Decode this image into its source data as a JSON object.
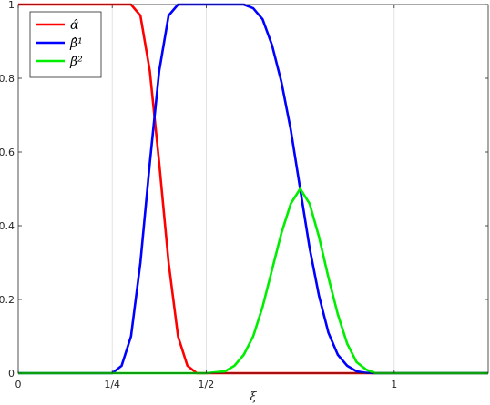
{
  "chart_data": {
    "type": "line",
    "xlabel": "ξ",
    "ylabel": "",
    "xlim": [
      0,
      1.25
    ],
    "ylim": [
      0,
      1
    ],
    "grid": "x-only",
    "legend_placement": "top-left",
    "x_ticks": [
      {
        "value": 0,
        "label": "0"
      },
      {
        "value": 0.25,
        "label": "1/4"
      },
      {
        "value": 0.5,
        "label": "1/2"
      },
      {
        "value": 1,
        "label": "1"
      }
    ],
    "y_ticks": [
      {
        "value": 0,
        "label": "0"
      },
      {
        "value": 0.2,
        "label": "0.2"
      },
      {
        "value": 0.4,
        "label": "0.4"
      },
      {
        "value": 0.6,
        "label": "0.6"
      },
      {
        "value": 0.8,
        "label": "0.8"
      },
      {
        "value": 1,
        "label": "1"
      }
    ],
    "series": [
      {
        "name": "α̂",
        "color": "#ff0000",
        "x": [
          0,
          0.25,
          0.3,
          0.325,
          0.35,
          0.375,
          0.4,
          0.425,
          0.45,
          0.475,
          0.5,
          0.75,
          1.0,
          1.25
        ],
        "y": [
          1,
          1,
          1,
          0.97,
          0.82,
          0.57,
          0.3,
          0.1,
          0.02,
          0.0,
          0,
          0,
          0,
          0
        ]
      },
      {
        "name": "β̂¹",
        "color": "#0000ff",
        "x": [
          0,
          0.25,
          0.275,
          0.3,
          0.325,
          0.35,
          0.375,
          0.4,
          0.425,
          0.45,
          0.5,
          0.6,
          0.625,
          0.65,
          0.675,
          0.7,
          0.725,
          0.75,
          0.775,
          0.8,
          0.825,
          0.85,
          0.875,
          0.9,
          0.925,
          0.95,
          1.0,
          1.25
        ],
        "y": [
          0,
          0,
          0.02,
          0.1,
          0.3,
          0.57,
          0.82,
          0.97,
          1.0,
          1.0,
          1.0,
          1.0,
          0.99,
          0.96,
          0.89,
          0.79,
          0.66,
          0.5,
          0.34,
          0.21,
          0.11,
          0.05,
          0.02,
          0.005,
          0.001,
          0,
          0,
          0
        ]
      },
      {
        "name": "β̂²",
        "color": "#00ee00",
        "x": [
          0,
          0.5,
          0.55,
          0.575,
          0.6,
          0.625,
          0.65,
          0.675,
          0.7,
          0.725,
          0.75,
          0.775,
          0.8,
          0.825,
          0.85,
          0.875,
          0.9,
          0.925,
          0.95,
          1.0,
          1.25
        ],
        "y": [
          0,
          0,
          0.005,
          0.02,
          0.05,
          0.1,
          0.18,
          0.28,
          0.38,
          0.46,
          0.5,
          0.46,
          0.37,
          0.26,
          0.16,
          0.08,
          0.03,
          0.01,
          0,
          0,
          0
        ]
      }
    ]
  }
}
